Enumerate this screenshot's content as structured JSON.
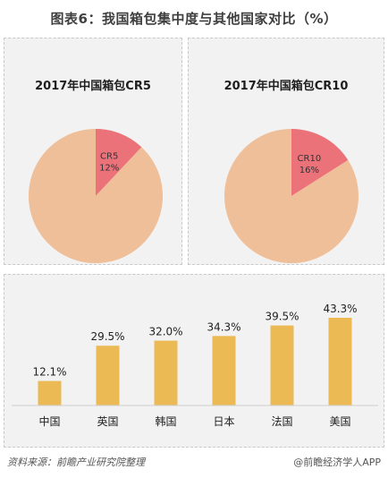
{
  "title": "图表6：我国箱包集中度与其他国家对比（%）",
  "colors": {
    "pie_main": "#efbf99",
    "pie_slice": "#ec727a",
    "bar": "#ebba55",
    "panel_bg": "#f2f2f2"
  },
  "chart_data": [
    {
      "type": "pie",
      "title": "2017年中国箱包CR5",
      "slices": [
        {
          "label": "CR5",
          "value_label": "12%",
          "value": 12
        },
        {
          "label": "",
          "value": 88
        }
      ]
    },
    {
      "type": "pie",
      "title": "2017年中国箱包CR10",
      "slices": [
        {
          "label": "CR10",
          "value_label": "16%",
          "value": 16
        },
        {
          "label": "",
          "value": 84
        }
      ]
    },
    {
      "type": "bar",
      "categories": [
        "中国",
        "英国",
        "韩国",
        "日本",
        "法国",
        "美国"
      ],
      "values": [
        12.1,
        29.5,
        32.0,
        34.3,
        39.5,
        43.3
      ],
      "value_labels": [
        "12.1%",
        "29.5%",
        "32.0%",
        "34.3%",
        "39.5%",
        "43.3%"
      ]
    }
  ],
  "footer": {
    "source": "资料来源：前瞻产业研究院整理",
    "brand": "@前瞻经济学人APP"
  }
}
